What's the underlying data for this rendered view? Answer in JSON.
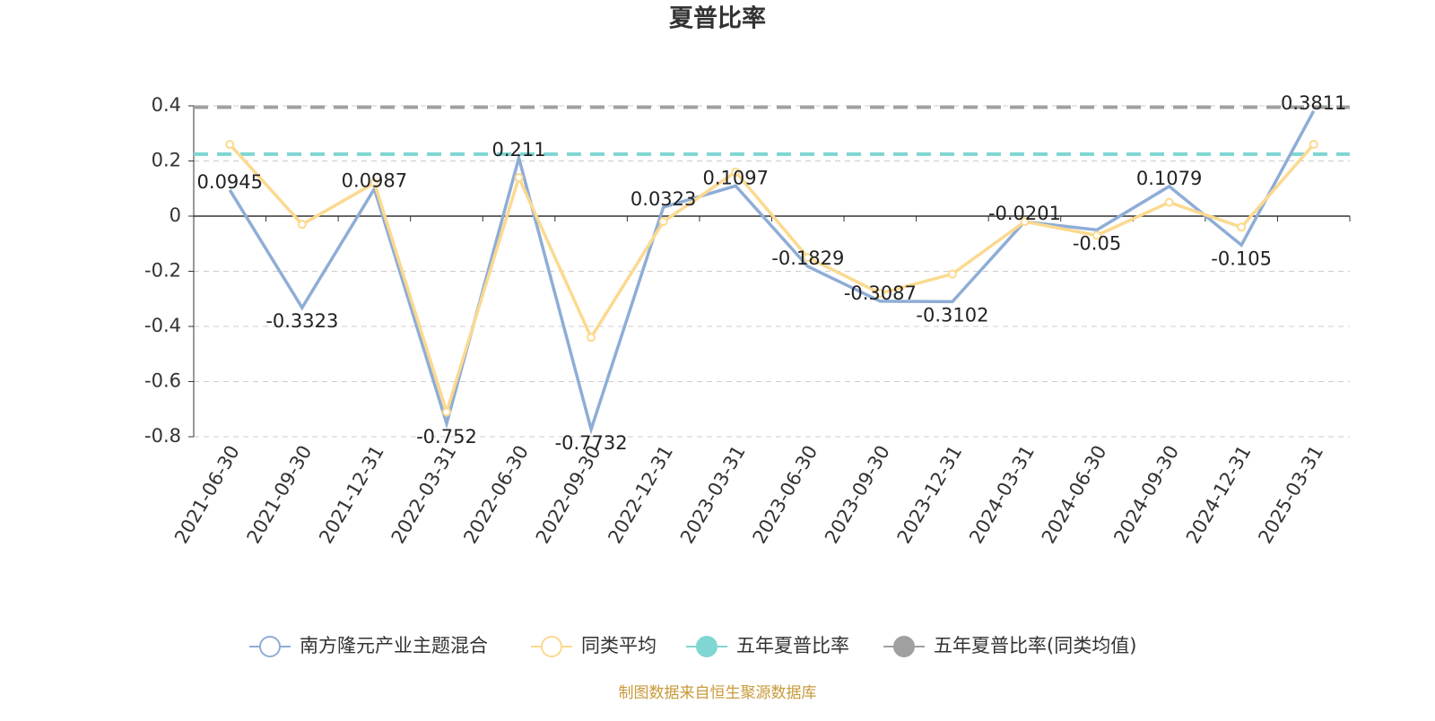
{
  "chart_data": {
    "type": "line",
    "title": "夏普比率",
    "categories": [
      "2021-06-30",
      "2021-09-30",
      "2021-12-31",
      "2022-03-31",
      "2022-06-30",
      "2022-09-30",
      "2022-12-31",
      "2023-03-31",
      "2023-06-30",
      "2023-09-30",
      "2023-12-31",
      "2024-03-31",
      "2024-06-30",
      "2024-09-30",
      "2024-12-31",
      "2025-03-31"
    ],
    "series": [
      {
        "name": "南方隆元产业主题混合",
        "color": "#8eadd6",
        "values": [
          0.0945,
          -0.3323,
          0.0987,
          -0.752,
          0.211,
          -0.7732,
          0.0323,
          0.1097,
          -0.1829,
          -0.3087,
          -0.3102,
          -0.0201,
          -0.05,
          0.1079,
          -0.105,
          0.3811
        ]
      },
      {
        "name": "同类平均",
        "color": "#fbd98f",
        "values": [
          0.26,
          -0.03,
          0.12,
          -0.71,
          0.14,
          -0.44,
          -0.02,
          0.16,
          -0.15,
          -0.28,
          -0.21,
          -0.02,
          -0.07,
          0.05,
          -0.04,
          0.26
        ]
      }
    ],
    "reference_lines": [
      {
        "name": "五年夏普比率",
        "color": "#7fd6d2",
        "value": 0.225
      },
      {
        "name": "五年夏普比率(同类均值)",
        "color": "#a0a0a0",
        "value": 0.395
      }
    ],
    "ylim": [
      -0.8,
      0.4
    ],
    "yticks": [
      -0.8,
      -0.6,
      -0.4,
      -0.2,
      0,
      0.2,
      0.4
    ],
    "grid": true,
    "legend": "bottom",
    "source": "制图数据来自恒生聚源数据库"
  }
}
